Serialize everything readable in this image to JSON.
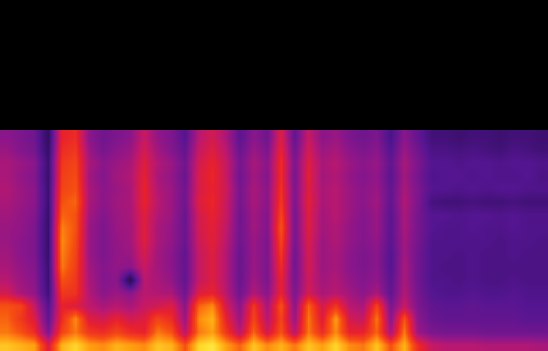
{
  "chart_data": {
    "type": "heatmap",
    "x": [
      0,
      1,
      2,
      3,
      4,
      5,
      6,
      7,
      8,
      9,
      10,
      11,
      12,
      13,
      14,
      15,
      16,
      17,
      18,
      19,
      20,
      21,
      22,
      23,
      24,
      25,
      26,
      27,
      28,
      29,
      30,
      31,
      32,
      33,
      34,
      35,
      36,
      37,
      38,
      39
    ],
    "y": [
      0,
      1,
      2,
      3,
      4,
      5,
      6,
      7,
      8,
      9,
      10,
      11,
      12,
      13,
      14,
      15,
      16
    ],
    "z": [
      [
        92,
        90,
        88,
        70,
        90,
        94,
        88,
        86,
        90,
        88,
        86,
        92,
        90,
        80,
        94,
        96,
        88,
        82,
        92,
        86,
        90,
        84,
        92,
        88,
        94,
        86,
        84,
        92,
        80,
        90,
        74,
        66,
        64,
        64,
        64,
        63,
        63,
        63,
        63,
        62
      ],
      [
        84,
        80,
        74,
        56,
        78,
        84,
        76,
        74,
        78,
        74,
        72,
        84,
        80,
        64,
        84,
        88,
        76,
        64,
        82,
        68,
        80,
        64,
        84,
        74,
        86,
        72,
        72,
        82,
        62,
        84,
        60,
        56,
        55,
        55,
        55,
        54,
        54,
        54,
        54,
        54
      ],
      [
        82,
        76,
        70,
        52,
        74,
        86,
        70,
        68,
        72,
        68,
        70,
        78,
        74,
        60,
        86,
        90,
        72,
        60,
        78,
        64,
        78,
        60,
        84,
        70,
        88,
        68,
        66,
        84,
        58,
        80,
        58,
        53,
        52,
        52,
        52,
        52,
        52,
        52,
        51,
        51
      ],
      [
        80,
        78,
        66,
        50,
        72,
        70,
        65,
        62,
        64,
        62,
        66,
        68,
        70,
        58,
        82,
        86,
        68,
        58,
        76,
        62,
        80,
        58,
        82,
        68,
        76,
        64,
        62,
        78,
        56,
        66,
        56,
        52,
        51,
        51,
        52,
        51,
        51,
        51,
        50,
        50
      ],
      [
        68,
        62,
        59,
        46,
        76,
        75,
        63,
        58,
        60,
        58,
        64,
        63,
        62,
        54,
        70,
        72,
        64,
        54,
        63,
        58,
        72,
        56,
        68,
        62,
        64,
        61,
        58,
        62,
        52,
        63,
        55,
        50,
        49,
        49,
        50,
        49,
        49,
        50,
        49,
        49
      ],
      [
        64,
        60,
        58,
        45,
        80,
        76,
        62,
        57,
        58,
        40,
        64,
        62,
        59,
        52,
        66,
        70,
        63,
        53,
        61,
        56,
        72,
        55,
        67,
        61,
        63,
        59,
        57,
        59,
        51,
        62,
        54,
        49,
        49,
        48,
        49,
        48,
        48,
        49,
        48,
        48
      ],
      [
        62,
        59,
        57,
        45,
        84,
        77,
        61,
        57,
        59,
        58,
        66,
        61,
        58,
        52,
        66,
        70,
        63,
        53,
        60,
        56,
        74,
        54,
        68,
        60,
        62,
        58,
        56,
        58,
        50,
        62,
        54,
        49,
        48,
        48,
        49,
        48,
        48,
        48,
        48,
        48
      ],
      [
        61,
        58,
        56,
        44,
        85,
        78,
        60,
        56,
        59,
        60,
        68,
        61,
        58,
        52,
        66,
        70,
        63,
        53,
        60,
        56,
        76,
        54,
        68,
        60,
        62,
        58,
        56,
        58,
        50,
        61,
        54,
        49,
        49,
        48,
        49,
        48,
        48,
        49,
        48,
        48
      ],
      [
        60,
        58,
        56,
        44,
        86,
        79,
        60,
        56,
        59,
        61,
        70,
        62,
        59,
        53,
        67,
        71,
        64,
        54,
        60,
        56,
        78,
        55,
        69,
        60,
        63,
        59,
        57,
        59,
        51,
        61,
        55,
        49,
        49,
        49,
        49,
        49,
        48,
        49,
        49,
        48
      ],
      [
        60,
        59,
        56,
        44,
        85,
        80,
        60,
        56,
        60,
        61,
        70,
        62,
        59,
        53,
        68,
        71,
        65,
        54,
        61,
        57,
        80,
        55,
        70,
        61,
        63,
        59,
        57,
        60,
        51,
        62,
        55,
        50,
        49,
        49,
        50,
        49,
        49,
        50,
        49,
        49
      ],
      [
        61,
        59,
        57,
        44,
        82,
        80,
        61,
        57,
        60,
        62,
        70,
        63,
        60,
        53,
        68,
        72,
        66,
        54,
        61,
        57,
        78,
        55,
        70,
        61,
        64,
        60,
        57,
        60,
        51,
        62,
        55,
        50,
        50,
        49,
        50,
        50,
        49,
        50,
        49,
        49
      ],
      [
        62,
        60,
        58,
        45,
        80,
        82,
        62,
        58,
        61,
        62,
        72,
        64,
        60,
        54,
        70,
        73,
        66,
        55,
        62,
        58,
        76,
        56,
        71,
        62,
        64,
        60,
        58,
        61,
        52,
        63,
        56,
        47,
        46,
        46,
        47,
        46,
        46,
        47,
        46,
        46
      ],
      [
        63,
        60,
        58,
        45,
        78,
        80,
        62,
        58,
        60,
        62,
        72,
        63,
        60,
        54,
        69,
        72,
        67,
        55,
        62,
        58,
        75,
        56,
        70,
        62,
        64,
        60,
        58,
        60,
        52,
        62,
        56,
        50,
        50,
        49,
        50,
        49,
        50,
        50,
        49,
        49
      ],
      [
        62,
        59,
        57,
        44,
        77,
        79,
        61,
        57,
        61,
        63,
        71,
        62,
        59,
        53,
        69,
        73,
        66,
        54,
        61,
        57,
        74,
        55,
        71,
        61,
        63,
        59,
        57,
        59,
        51,
        61,
        55,
        49,
        50,
        50,
        49,
        50,
        49,
        49,
        50,
        48
      ],
      [
        62,
        60,
        58,
        45,
        76,
        78,
        62,
        58,
        60,
        62,
        70,
        63,
        60,
        54,
        68,
        72,
        66,
        55,
        62,
        58,
        74,
        56,
        70,
        62,
        64,
        60,
        58,
        60,
        52,
        62,
        56,
        50,
        50,
        49,
        50,
        50,
        49,
        50,
        50,
        49
      ],
      [
        60,
        57,
        55,
        43,
        74,
        76,
        60,
        55,
        58,
        60,
        68,
        61,
        57,
        52,
        66,
        70,
        64,
        53,
        60,
        56,
        72,
        54,
        68,
        60,
        62,
        58,
        56,
        58,
        50,
        60,
        54,
        48,
        48,
        47,
        48,
        47,
        46,
        48,
        47,
        46
      ],
      [
        58,
        56,
        54,
        42,
        72,
        74,
        58,
        54,
        56,
        58,
        66,
        59,
        56,
        50,
        64,
        68,
        62,
        51,
        58,
        54,
        70,
        52,
        66,
        58,
        60,
        56,
        54,
        56,
        48,
        58,
        52,
        46,
        46,
        45,
        46,
        46,
        45,
        46,
        46,
        45
      ]
    ],
    "xlim": [
      -0.5,
      39.5
    ],
    "ylim": [
      -0.5,
      26.5
    ],
    "zlim": [
      0,
      100
    ],
    "tick_labels": false
  }
}
